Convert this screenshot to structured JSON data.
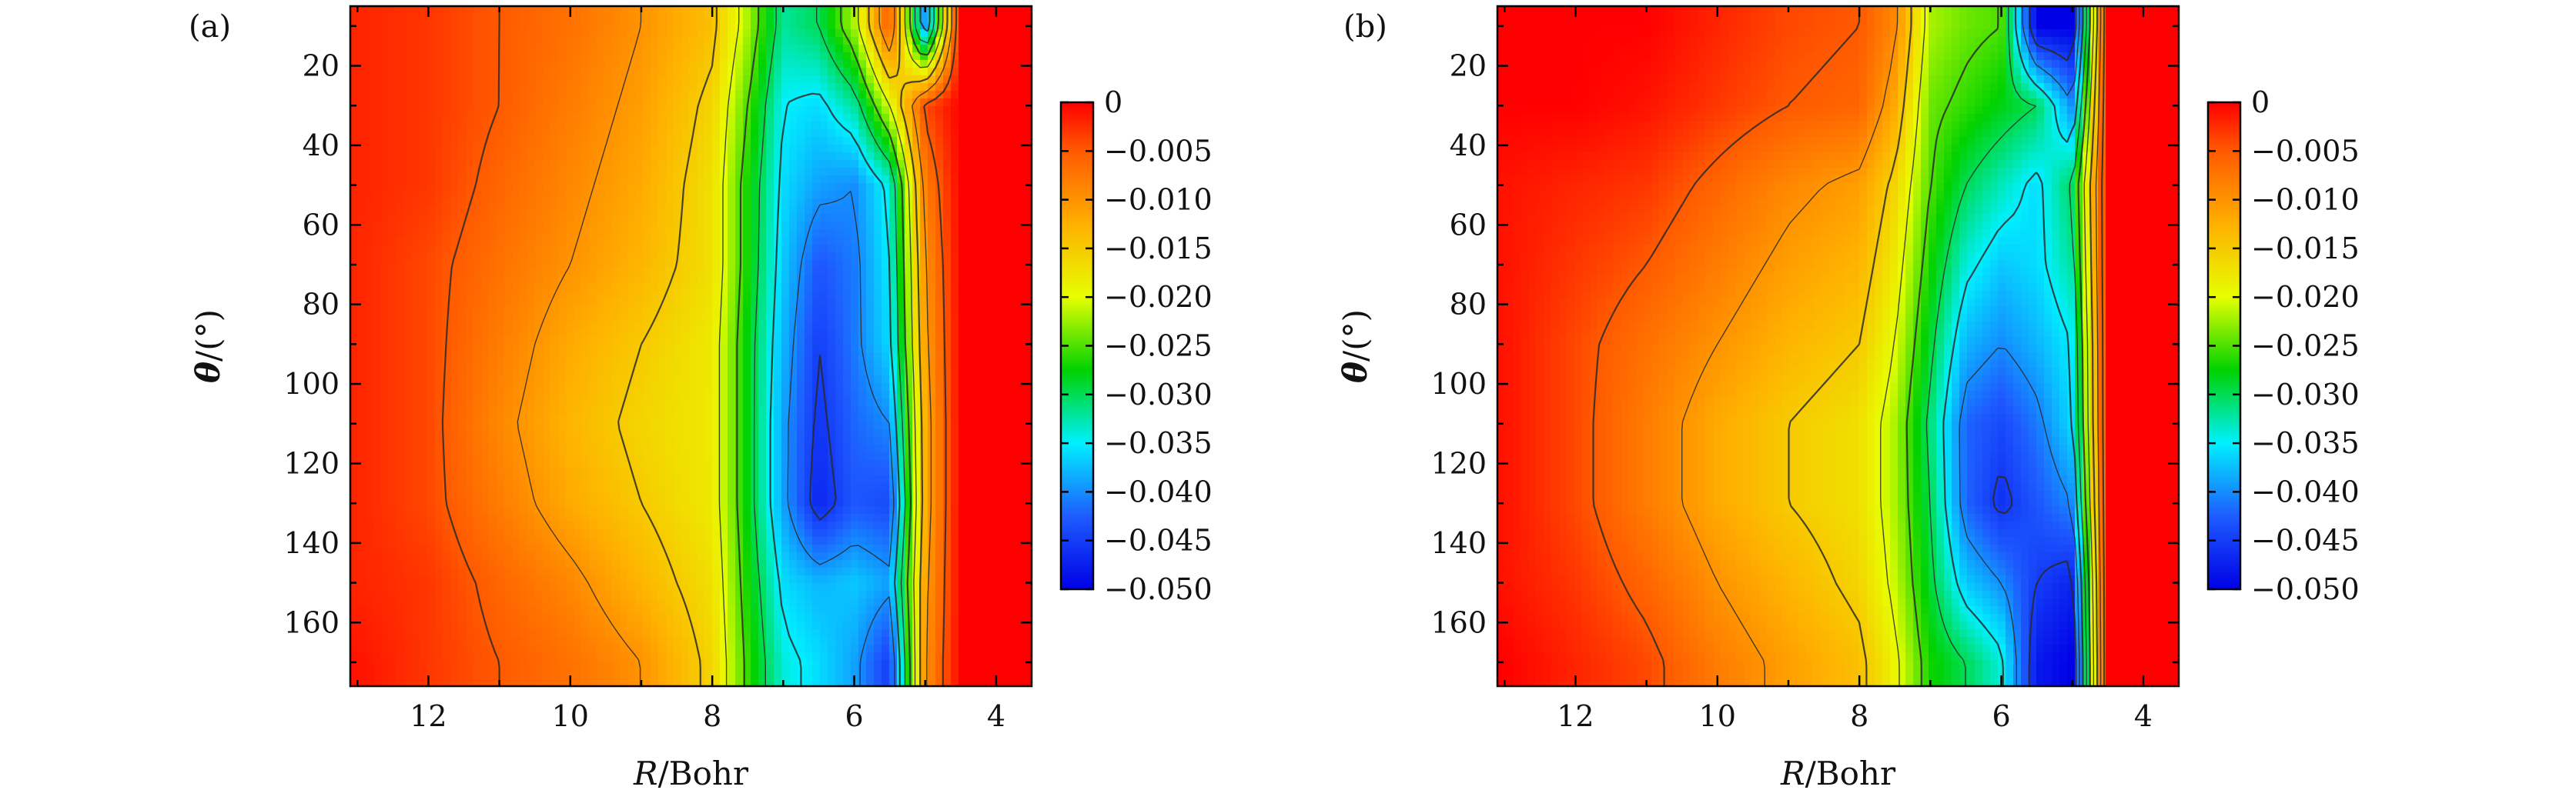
{
  "figure": {
    "panels": [
      {
        "id": "a",
        "label": "(a)"
      },
      {
        "id": "b",
        "label": "(b)"
      }
    ],
    "colorscale": {
      "min": -0.05,
      "max": 0,
      "stops": [
        {
          "v": 0.0,
          "color": "#0000e6"
        },
        {
          "v": 0.15,
          "color": "#1e5cff"
        },
        {
          "v": 0.3,
          "color": "#00f0ff"
        },
        {
          "v": 0.45,
          "color": "#00d200"
        },
        {
          "v": 0.6,
          "color": "#e6ff00"
        },
        {
          "v": 0.75,
          "color": "#ffb000"
        },
        {
          "v": 0.9,
          "color": "#ff5a00"
        },
        {
          "v": 1.0,
          "color": "#ff0000"
        }
      ]
    }
  },
  "chart_data": [
    {
      "type": "heatmap",
      "panel": "(a)",
      "xlabel_var": "R",
      "xlabel_unit": "/Bohr",
      "ylabel_var": "θ",
      "ylabel_unit": "/(°)",
      "xlim": [
        13.1,
        3.5
      ],
      "ylim": [
        176,
        5
      ],
      "xticks": [
        12,
        10,
        8,
        6,
        4
      ],
      "xtick_labels": [
        "12",
        "10",
        "8",
        "6",
        "4"
      ],
      "yticks": [
        20,
        40,
        60,
        80,
        100,
        120,
        140,
        160
      ],
      "ytick_labels": [
        "20",
        "40",
        "60",
        "80",
        "100",
        "120",
        "140",
        "160"
      ],
      "zlim": [
        -0.05,
        0
      ],
      "colorbar_ticks": [
        0,
        -0.005,
        -0.01,
        -0.015,
        -0.02,
        -0.025,
        -0.03,
        -0.035,
        -0.04,
        -0.045,
        -0.05
      ],
      "colorbar_labels": [
        "0",
        "−0.005",
        "−0.010",
        "−0.015",
        "−0.020",
        "−0.025",
        "−0.030",
        "−0.035",
        "−0.040",
        "−0.045",
        "−0.050"
      ],
      "contour_levels": [
        -0.045,
        -0.04,
        -0.035,
        -0.03,
        -0.025,
        -0.02,
        -0.015,
        -0.01,
        -0.005
      ],
      "sample_grid": {
        "R": [
          13.0,
          12.0,
          11.0,
          10.0,
          9.0,
          8.0,
          7.5,
          7.0,
          6.5,
          6.0,
          5.5,
          5.0,
          4.5,
          4.0
        ],
        "theta": [
          10,
          30,
          50,
          70,
          90,
          110,
          130,
          150,
          170
        ],
        "values": [
          [
            -0.002,
            -0.003,
            -0.005,
            -0.007,
            -0.01,
            -0.014,
            -0.022,
            -0.032,
            -0.03,
            -0.022,
            -0.005,
            -0.04,
            0.0,
            0.0
          ],
          [
            -0.002,
            -0.003,
            -0.005,
            -0.008,
            -0.011,
            -0.016,
            -0.025,
            -0.035,
            -0.036,
            -0.032,
            -0.02,
            -0.004,
            0.0,
            0.0
          ],
          [
            -0.002,
            -0.003,
            -0.006,
            -0.009,
            -0.012,
            -0.017,
            -0.027,
            -0.036,
            -0.039,
            -0.04,
            -0.034,
            -0.008,
            0.0,
            0.0
          ],
          [
            -0.002,
            -0.004,
            -0.007,
            -0.01,
            -0.013,
            -0.017,
            -0.027,
            -0.037,
            -0.043,
            -0.041,
            -0.035,
            -0.01,
            0.0,
            0.0
          ],
          [
            -0.002,
            -0.004,
            -0.008,
            -0.012,
            -0.015,
            -0.018,
            -0.028,
            -0.038,
            -0.045,
            -0.041,
            -0.036,
            -0.011,
            0.0,
            0.0
          ],
          [
            -0.002,
            -0.004,
            -0.009,
            -0.013,
            -0.016,
            -0.018,
            -0.028,
            -0.039,
            -0.046,
            -0.042,
            -0.04,
            -0.012,
            0.0,
            0.0
          ],
          [
            -0.002,
            -0.004,
            -0.008,
            -0.012,
            -0.015,
            -0.018,
            -0.028,
            -0.039,
            -0.047,
            -0.043,
            -0.044,
            -0.012,
            0.0,
            0.0
          ],
          [
            -0.002,
            -0.003,
            -0.006,
            -0.009,
            -0.013,
            -0.017,
            -0.027,
            -0.036,
            -0.038,
            -0.037,
            -0.039,
            -0.011,
            0.0,
            0.0
          ],
          [
            -0.001,
            -0.003,
            -0.005,
            -0.007,
            -0.01,
            -0.016,
            -0.026,
            -0.034,
            -0.036,
            -0.039,
            -0.045,
            -0.01,
            0.0,
            0.0
          ]
        ]
      }
    },
    {
      "type": "heatmap",
      "panel": "(b)",
      "xlabel_var": "R",
      "xlabel_unit": "/Bohr",
      "ylabel_var": "θ",
      "ylabel_unit": "/(°)",
      "xlim": [
        13.1,
        3.5
      ],
      "ylim": [
        176,
        5
      ],
      "xticks": [
        12,
        10,
        8,
        6,
        4
      ],
      "xtick_labels": [
        "12",
        "10",
        "8",
        "6",
        "4"
      ],
      "yticks": [
        20,
        40,
        60,
        80,
        100,
        120,
        140,
        160
      ],
      "ytick_labels": [
        "20",
        "40",
        "60",
        "80",
        "100",
        "120",
        "140",
        "160"
      ],
      "zlim": [
        -0.05,
        0
      ],
      "colorbar_ticks": [
        0,
        -0.005,
        -0.01,
        -0.015,
        -0.02,
        -0.025,
        -0.03,
        -0.035,
        -0.04,
        -0.045,
        -0.05
      ],
      "colorbar_labels": [
        "0",
        "−0.005",
        "−0.010",
        "−0.015",
        "−0.020",
        "−0.025",
        "−0.030",
        "−0.035",
        "−0.040",
        "−0.045",
        "−0.050"
      ],
      "contour_levels": [
        -0.045,
        -0.04,
        -0.035,
        -0.03,
        -0.025,
        -0.02,
        -0.015,
        -0.01,
        -0.005
      ],
      "sample_grid": {
        "R": [
          13.0,
          12.0,
          11.0,
          10.0,
          9.0,
          8.0,
          7.5,
          7.0,
          6.5,
          6.0,
          5.5,
          5.0,
          4.5,
          4.0
        ],
        "theta": [
          10,
          30,
          50,
          70,
          90,
          110,
          130,
          150,
          170
        ],
        "values": [
          [
            0.0,
            0.0,
            0.0,
            -0.002,
            -0.004,
            -0.005,
            -0.009,
            -0.022,
            -0.024,
            -0.025,
            -0.05,
            -0.05,
            0.0,
            0.0
          ],
          [
            0.0,
            0.0,
            -0.001,
            -0.003,
            -0.005,
            -0.006,
            -0.012,
            -0.024,
            -0.026,
            -0.028,
            -0.03,
            -0.04,
            0.0,
            0.0
          ],
          [
            -0.001,
            -0.002,
            -0.003,
            -0.006,
            -0.009,
            -0.011,
            -0.016,
            -0.025,
            -0.03,
            -0.033,
            -0.036,
            -0.03,
            0.0,
            0.0
          ],
          [
            -0.001,
            -0.003,
            -0.005,
            -0.008,
            -0.011,
            -0.013,
            -0.018,
            -0.027,
            -0.034,
            -0.037,
            -0.036,
            -0.032,
            0.0,
            0.0
          ],
          [
            -0.001,
            -0.004,
            -0.007,
            -0.01,
            -0.013,
            -0.015,
            -0.02,
            -0.029,
            -0.038,
            -0.04,
            -0.038,
            -0.035,
            0.0,
            0.0
          ],
          [
            -0.001,
            -0.004,
            -0.008,
            -0.012,
            -0.015,
            -0.017,
            -0.022,
            -0.031,
            -0.042,
            -0.044,
            -0.041,
            -0.036,
            0.0,
            0.0
          ],
          [
            -0.001,
            -0.004,
            -0.008,
            -0.012,
            -0.015,
            -0.017,
            -0.022,
            -0.03,
            -0.042,
            -0.046,
            -0.043,
            -0.04,
            0.0,
            0.0
          ],
          [
            -0.001,
            -0.003,
            -0.006,
            -0.01,
            -0.013,
            -0.016,
            -0.021,
            -0.029,
            -0.037,
            -0.04,
            -0.045,
            -0.047,
            0.0,
            0.0
          ],
          [
            0.0,
            -0.002,
            -0.004,
            -0.008,
            -0.011,
            -0.014,
            -0.019,
            -0.027,
            -0.03,
            -0.034,
            -0.048,
            -0.05,
            0.0,
            0.0
          ]
        ]
      }
    }
  ]
}
